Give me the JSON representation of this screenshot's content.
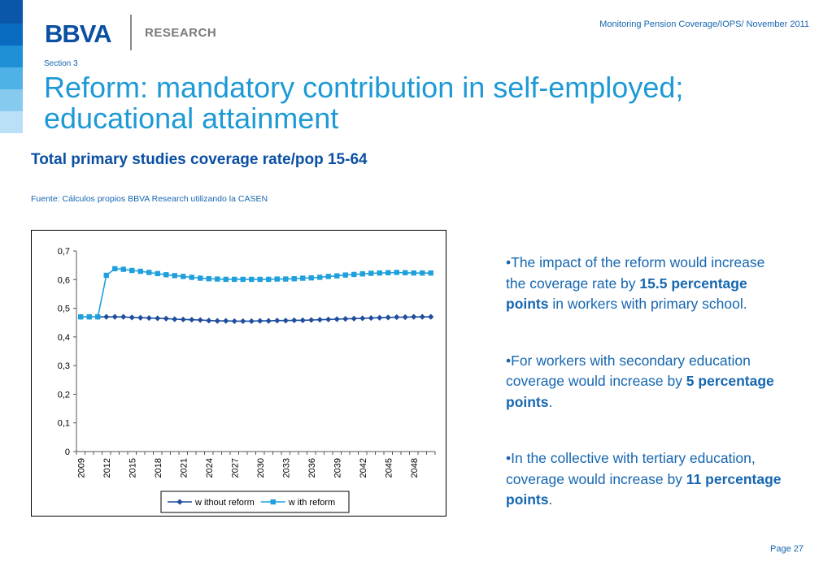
{
  "header": {
    "logo_text": "BBVA",
    "logo_sub": "RESEARCH",
    "meta": "Monitoring Pension Coverage/IOPS/ November 2011",
    "section": "Section 3",
    "title": "Reform: mandatory contribution in self-employed; educational attainment"
  },
  "figure": {
    "subtitle": "Total primary studies coverage rate/pop 15-64",
    "source": "Fuente: Cálculos propios BBVA Research utilizando la CASEN"
  },
  "colors": {
    "accent_dark": "#0b4fa2",
    "accent_light": "#1d9ad6",
    "series_without": "#1f4e9e",
    "series_with": "#1fa0dc",
    "strip": [
      "#0a56a8",
      "#0a6cc0",
      "#1f8fd6",
      "#4fb1e6",
      "#86cbef",
      "#b9e0f6"
    ]
  },
  "chart_data": {
    "type": "line",
    "title": "",
    "xlabel": "",
    "ylabel": "",
    "ylim": [
      0,
      0.7
    ],
    "yticks": [
      "0",
      "0,1",
      "0,2",
      "0,3",
      "0,4",
      "0,5",
      "0,6",
      "0,7"
    ],
    "xtick_labels": [
      "2009",
      "2012",
      "2015",
      "2018",
      "2021",
      "2024",
      "2027",
      "2030",
      "2033",
      "2036",
      "2039",
      "2042",
      "2045",
      "2048"
    ],
    "grid": false,
    "legend_position": "bottom",
    "x": [
      2009,
      2010,
      2011,
      2012,
      2013,
      2014,
      2015,
      2016,
      2017,
      2018,
      2019,
      2020,
      2021,
      2022,
      2023,
      2024,
      2025,
      2026,
      2027,
      2028,
      2029,
      2030,
      2031,
      2032,
      2033,
      2034,
      2035,
      2036,
      2037,
      2038,
      2039,
      2040,
      2041,
      2042,
      2043,
      2044,
      2045,
      2046,
      2047,
      2048,
      2049,
      2050
    ],
    "series": [
      {
        "name": "w ithout reform",
        "marker": "diamond",
        "values": [
          0.47,
          0.47,
          0.47,
          0.47,
          0.47,
          0.47,
          0.468,
          0.467,
          0.466,
          0.465,
          0.464,
          0.462,
          0.461,
          0.46,
          0.459,
          0.457,
          0.456,
          0.456,
          0.455,
          0.455,
          0.455,
          0.456,
          0.456,
          0.457,
          0.457,
          0.458,
          0.458,
          0.459,
          0.46,
          0.461,
          0.462,
          0.463,
          0.464,
          0.465,
          0.466,
          0.467,
          0.468,
          0.469,
          0.469,
          0.47,
          0.47,
          0.47
        ]
      },
      {
        "name": "w ith reform",
        "marker": "square",
        "values": [
          0.47,
          0.47,
          0.47,
          0.615,
          0.638,
          0.636,
          0.632,
          0.629,
          0.625,
          0.621,
          0.617,
          0.614,
          0.611,
          0.608,
          0.605,
          0.603,
          0.602,
          0.601,
          0.601,
          0.601,
          0.601,
          0.601,
          0.601,
          0.602,
          0.602,
          0.603,
          0.605,
          0.606,
          0.608,
          0.611,
          0.613,
          0.616,
          0.618,
          0.62,
          0.622,
          0.623,
          0.624,
          0.625,
          0.624,
          0.623,
          0.623,
          0.623
        ]
      }
    ]
  },
  "bullets": [
    {
      "before": "•The impact of the reform would increase the coverage rate by ",
      "bold": "15.5 percentage points",
      "after": " in workers with primary school."
    },
    {
      "before": "•For workers with secondary education coverage would increase by ",
      "bold": "5 percentage points",
      "after": "."
    },
    {
      "before": "•In the collective with tertiary education, coverage would increase by ",
      "bold": "11 percentage points",
      "after": "."
    }
  ],
  "footer": {
    "page": "Page 27"
  }
}
